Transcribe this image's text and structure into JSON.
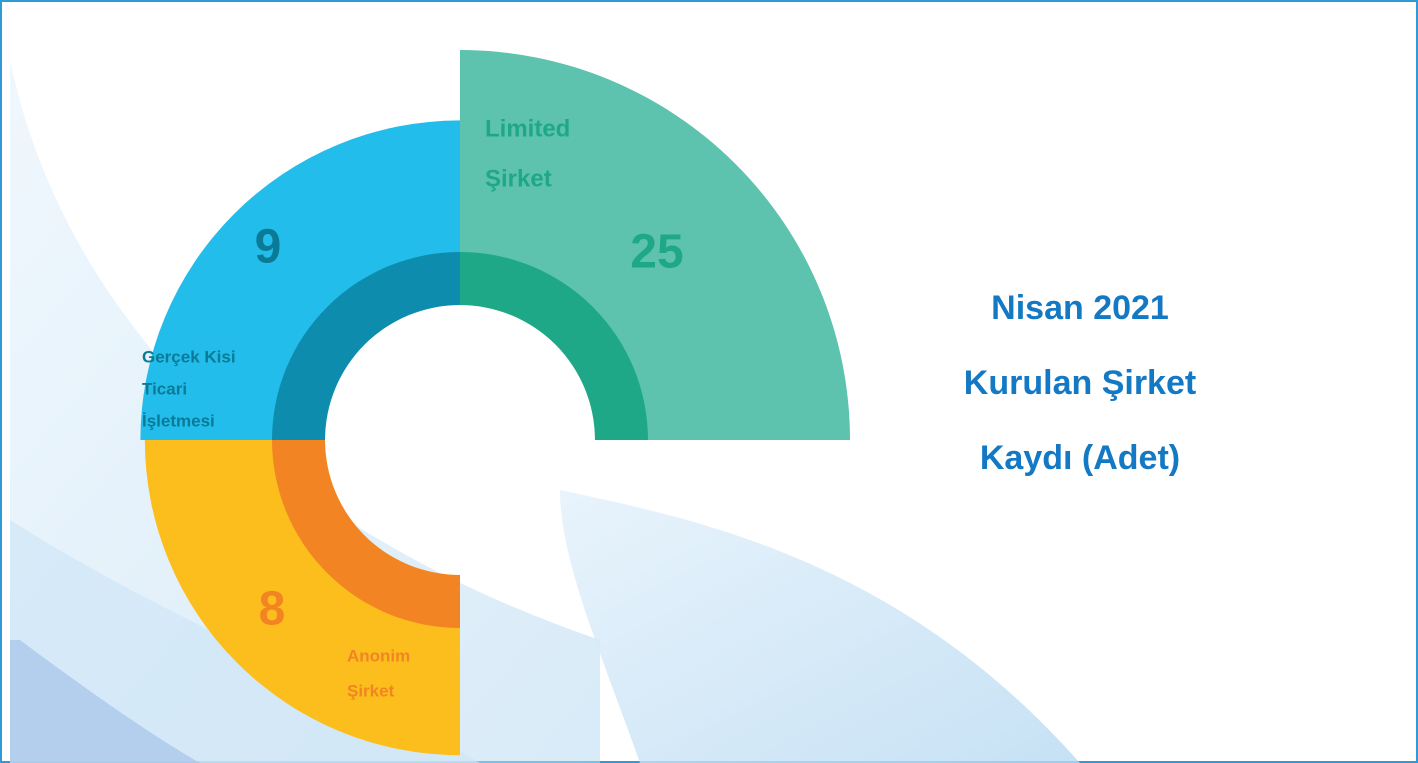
{
  "chart_data": {
    "type": "polar-quadrant",
    "title": [
      "Nisan 2021",
      "Kurulan Şirket",
      "Kaydı (Adet)"
    ],
    "categories": [
      [
        "Limited",
        "Şirket"
      ],
      [
        "Gerçek Kisi",
        "Ticari",
        "İşletmesi"
      ],
      [
        "Anonim",
        "Şirket"
      ]
    ],
    "values": [
      25,
      9,
      8
    ],
    "colors": [
      "#5dc3ae",
      "#22bdea",
      "#fcbe1c"
    ],
    "inner_colors": [
      "#1fa888",
      "#0e8cae",
      "#f28423"
    ],
    "label_colors": [
      "#1fa888",
      "#0b7a96",
      "#f28423"
    ]
  }
}
